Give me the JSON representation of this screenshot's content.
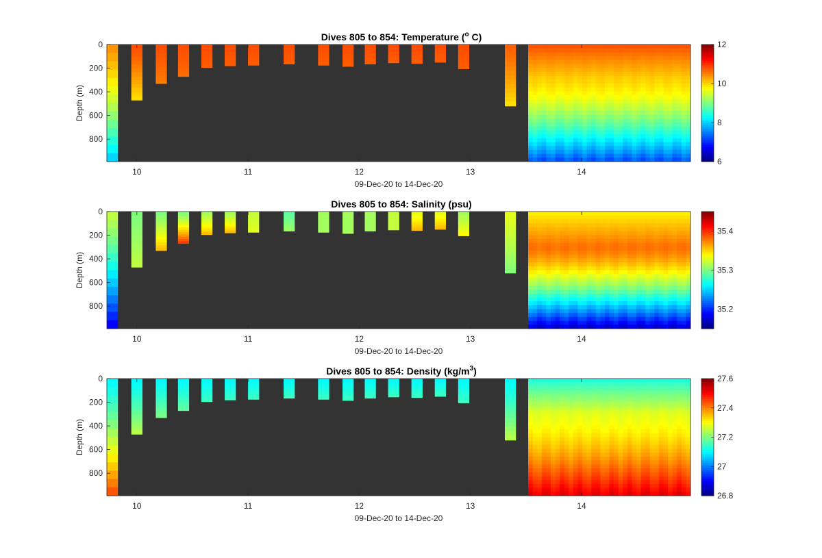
{
  "chart_data": [
    {
      "type": "heatmap",
      "title": "Dives 805 to 854: Temperature (",
      "title_sup": "o",
      "title_tail": " C)",
      "xlabel": "09-Dec-20 to 14-Dec-20",
      "ylabel": "Depth (m)",
      "x_ticks": [
        "10",
        "11",
        "12",
        "13",
        "14"
      ],
      "x_tick_values": [
        10,
        11,
        12,
        13,
        14
      ],
      "xlim": [
        9.73,
        14.98
      ],
      "y_ticks": [
        "0",
        "200",
        "400",
        "600",
        "800"
      ],
      "y_tick_values": [
        0,
        200,
        400,
        600,
        800
      ],
      "ylim": [
        0,
        990
      ],
      "colorbar_ticks": [
        "6",
        "8",
        "10",
        "12"
      ],
      "colorbar_tick_values": [
        6,
        8,
        10,
        12
      ],
      "clim": [
        6,
        12
      ],
      "colormap": "jet",
      "background_color": "#333333",
      "profiles": [
        {
          "day": 9.78,
          "max_depth": 990,
          "surface_value": 10.4,
          "bottom_value": 7.9
        },
        {
          "day": 10.0,
          "max_depth": 470,
          "surface_value": 10.8,
          "bottom_value": 9.9
        },
        {
          "day": 10.22,
          "max_depth": 330,
          "surface_value": 10.8,
          "bottom_value": 10.5
        },
        {
          "day": 10.42,
          "max_depth": 270,
          "surface_value": 10.8,
          "bottom_value": 10.6
        },
        {
          "day": 10.63,
          "max_depth": 195,
          "surface_value": 10.8,
          "bottom_value": 10.7
        },
        {
          "day": 10.84,
          "max_depth": 180,
          "surface_value": 10.8,
          "bottom_value": 10.7
        },
        {
          "day": 11.05,
          "max_depth": 175,
          "surface_value": 10.8,
          "bottom_value": 10.7
        },
        {
          "day": 11.37,
          "max_depth": 165,
          "surface_value": 10.8,
          "bottom_value": 10.7
        },
        {
          "day": 11.68,
          "max_depth": 175,
          "surface_value": 10.8,
          "bottom_value": 10.7
        },
        {
          "day": 11.9,
          "max_depth": 185,
          "surface_value": 10.8,
          "bottom_value": 10.7
        },
        {
          "day": 12.1,
          "max_depth": 165,
          "surface_value": 10.8,
          "bottom_value": 10.7
        },
        {
          "day": 12.31,
          "max_depth": 155,
          "surface_value": 10.8,
          "bottom_value": 10.7
        },
        {
          "day": 12.52,
          "max_depth": 160,
          "surface_value": 10.8,
          "bottom_value": 10.7
        },
        {
          "day": 12.73,
          "max_depth": 150,
          "surface_value": 10.8,
          "bottom_value": 10.7
        },
        {
          "day": 12.94,
          "max_depth": 205,
          "surface_value": 10.8,
          "bottom_value": 10.7
        },
        {
          "day": 13.36,
          "max_depth": 520,
          "surface_value": 10.7,
          "bottom_value": 9.9
        }
      ],
      "dense_section": {
        "day_start": 13.52,
        "day_end": 14.98,
        "max_depth": 990,
        "surface_value": 10.8,
        "mid_value": 10.0,
        "bottom_value": 7.2
      }
    },
    {
      "type": "heatmap",
      "title": "Dives 805 to 854: Salinity (psu)",
      "xlabel": "09-Dec-20 to 14-Dec-20",
      "ylabel": "Depth (m)",
      "x_ticks": [
        "10",
        "11",
        "12",
        "13",
        "14"
      ],
      "x_tick_values": [
        10,
        11,
        12,
        13,
        14
      ],
      "xlim": [
        9.73,
        14.98
      ],
      "y_ticks": [
        "0",
        "200",
        "400",
        "600",
        "800"
      ],
      "y_tick_values": [
        0,
        200,
        400,
        600,
        800
      ],
      "ylim": [
        0,
        990
      ],
      "colorbar_ticks": [
        "35.2",
        "35.3",
        "35.4"
      ],
      "colorbar_tick_values": [
        35.2,
        35.3,
        35.4
      ],
      "clim": [
        35.15,
        35.45
      ],
      "colormap": "jet",
      "background_color": "#333333",
      "profiles": [
        {
          "day": 9.78,
          "max_depth": 990,
          "surface_value": 35.32,
          "bottom_value": 35.18
        },
        {
          "day": 10.0,
          "max_depth": 470,
          "surface_value": 35.3,
          "bottom_value": 35.32
        },
        {
          "day": 10.22,
          "max_depth": 330,
          "surface_value": 35.3,
          "bottom_value": 35.36
        },
        {
          "day": 10.42,
          "max_depth": 270,
          "surface_value": 35.3,
          "bottom_value": 35.4
        },
        {
          "day": 10.63,
          "max_depth": 195,
          "surface_value": 35.31,
          "bottom_value": 35.36
        },
        {
          "day": 10.84,
          "max_depth": 180,
          "surface_value": 35.31,
          "bottom_value": 35.36
        },
        {
          "day": 11.05,
          "max_depth": 175,
          "surface_value": 35.32,
          "bottom_value": 35.33
        },
        {
          "day": 11.37,
          "max_depth": 165,
          "surface_value": 35.29,
          "bottom_value": 35.31
        },
        {
          "day": 11.68,
          "max_depth": 175,
          "surface_value": 35.31,
          "bottom_value": 35.31
        },
        {
          "day": 11.9,
          "max_depth": 185,
          "surface_value": 35.31,
          "bottom_value": 35.31
        },
        {
          "day": 12.1,
          "max_depth": 165,
          "surface_value": 35.31,
          "bottom_value": 35.31
        },
        {
          "day": 12.31,
          "max_depth": 155,
          "surface_value": 35.32,
          "bottom_value": 35.32
        },
        {
          "day": 12.52,
          "max_depth": 160,
          "surface_value": 35.33,
          "bottom_value": 35.36
        },
        {
          "day": 12.73,
          "max_depth": 150,
          "surface_value": 35.33,
          "bottom_value": 35.36
        },
        {
          "day": 12.94,
          "max_depth": 205,
          "surface_value": 35.31,
          "bottom_value": 35.34
        },
        {
          "day": 13.36,
          "max_depth": 520,
          "surface_value": 35.33,
          "bottom_value": 35.3
        }
      ],
      "dense_section": {
        "day_start": 13.52,
        "day_end": 14.98,
        "max_depth": 990,
        "surface_value": 35.34,
        "mid_value": 35.38,
        "bottom_value": 35.17
      }
    },
    {
      "type": "heatmap",
      "title": "Dives 805 to 854: Density (kg/m",
      "title_sup": "3",
      "title_tail": ")",
      "xlabel": "09-Dec-20 to 14-Dec-20",
      "ylabel": "Depth (m)",
      "x_ticks": [
        "10",
        "11",
        "12",
        "13",
        "14"
      ],
      "x_tick_values": [
        10,
        11,
        12,
        13,
        14
      ],
      "xlim": [
        9.73,
        14.98
      ],
      "y_ticks": [
        "0",
        "200",
        "400",
        "600",
        "800"
      ],
      "y_tick_values": [
        0,
        200,
        400,
        600,
        800
      ],
      "ylim": [
        0,
        990
      ],
      "colorbar_ticks": [
        "26.8",
        "27",
        "27.2",
        "27.4",
        "27.6"
      ],
      "colorbar_tick_values": [
        26.8,
        27.0,
        27.2,
        27.4,
        27.6
      ],
      "clim": [
        26.8,
        27.6
      ],
      "colormap": "jet",
      "background_color": "#333333",
      "profiles": [
        {
          "day": 9.78,
          "max_depth": 990,
          "surface_value": 27.1,
          "bottom_value": 27.45
        },
        {
          "day": 10.0,
          "max_depth": 470,
          "surface_value": 27.1,
          "bottom_value": 27.25
        },
        {
          "day": 10.22,
          "max_depth": 330,
          "surface_value": 27.1,
          "bottom_value": 27.2
        },
        {
          "day": 10.42,
          "max_depth": 270,
          "surface_value": 27.1,
          "bottom_value": 27.18
        },
        {
          "day": 10.63,
          "max_depth": 195,
          "surface_value": 27.1,
          "bottom_value": 27.15
        },
        {
          "day": 10.84,
          "max_depth": 180,
          "surface_value": 27.1,
          "bottom_value": 27.15
        },
        {
          "day": 11.05,
          "max_depth": 175,
          "surface_value": 27.1,
          "bottom_value": 27.15
        },
        {
          "day": 11.37,
          "max_depth": 165,
          "surface_value": 27.1,
          "bottom_value": 27.15
        },
        {
          "day": 11.68,
          "max_depth": 175,
          "surface_value": 27.1,
          "bottom_value": 27.15
        },
        {
          "day": 11.9,
          "max_depth": 185,
          "surface_value": 27.1,
          "bottom_value": 27.15
        },
        {
          "day": 12.1,
          "max_depth": 165,
          "surface_value": 27.1,
          "bottom_value": 27.15
        },
        {
          "day": 12.31,
          "max_depth": 155,
          "surface_value": 27.1,
          "bottom_value": 27.15
        },
        {
          "day": 12.52,
          "max_depth": 160,
          "surface_value": 27.1,
          "bottom_value": 27.15
        },
        {
          "day": 12.73,
          "max_depth": 150,
          "surface_value": 27.1,
          "bottom_value": 27.15
        },
        {
          "day": 12.94,
          "max_depth": 205,
          "surface_value": 27.1,
          "bottom_value": 27.15
        },
        {
          "day": 13.36,
          "max_depth": 520,
          "surface_value": 27.1,
          "bottom_value": 27.25
        }
      ],
      "dense_section": {
        "day_start": 13.52,
        "day_end": 14.98,
        "max_depth": 990,
        "surface_value": 27.12,
        "mid_value": 27.28,
        "bottom_value": 27.52
      }
    }
  ]
}
